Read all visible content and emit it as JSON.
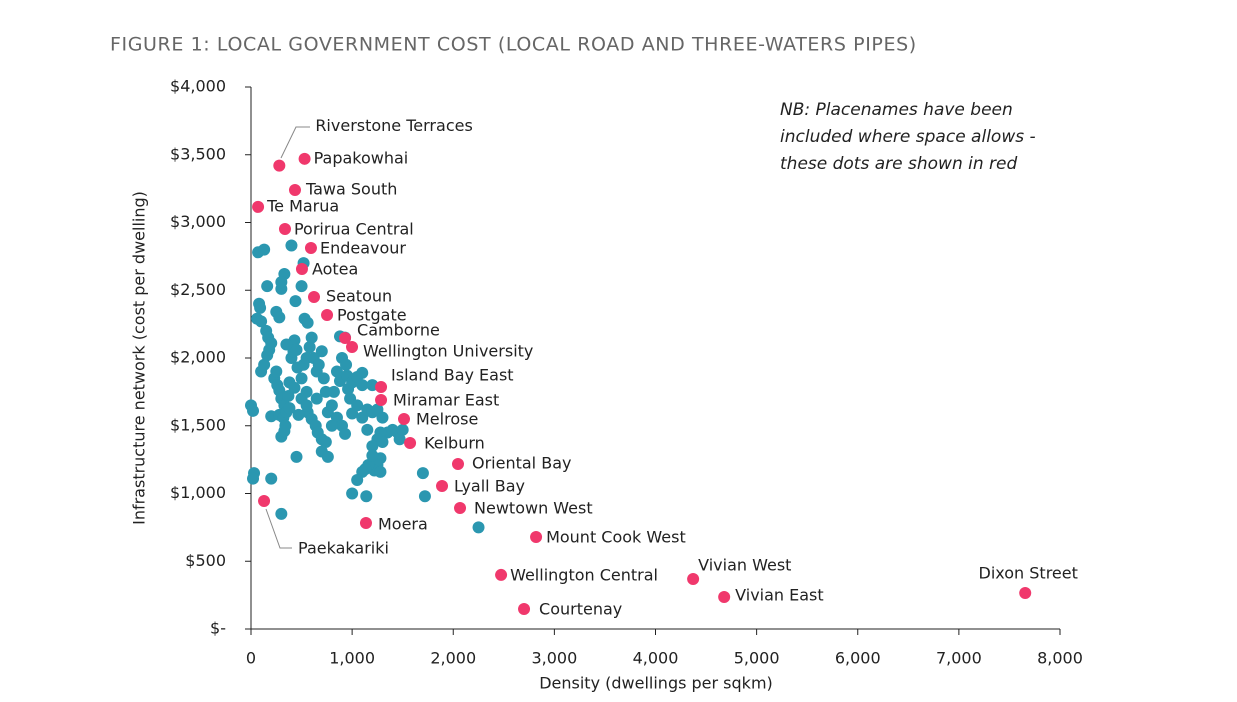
{
  "chart_data": {
    "type": "scatter",
    "title": "FIGURE 1: LOCAL GOVERNMENT COST (LOCAL ROAD AND THREE-WATERS PIPES)",
    "xlabel": "Density (dwellings per sqkm)",
    "ylabel": "Infrastructure network (cost per dwelling)",
    "annotation": [
      "NB: Placenames have been",
      "included where space allows -",
      "these dots are shown in red"
    ],
    "xlim": [
      0,
      8000
    ],
    "ylim": [
      0,
      4000
    ],
    "xticks": [
      0,
      {
        "value": 1000,
        "label": "1,000"
      },
      {
        "value": 2000,
        "label": "2,000"
      },
      {
        "value": 3000,
        "label": "3,000"
      },
      {
        "value": 4000,
        "label": "4,000"
      },
      {
        "value": 5000,
        "label": "5,000"
      },
      {
        "value": 6000,
        "label": "6,000"
      },
      {
        "value": 7000,
        "label": "7,000"
      },
      {
        "value": 8000,
        "label": "8,000"
      }
    ],
    "yticks": [
      {
        "value": 0,
        "label": "$-"
      },
      {
        "value": 500,
        "label": "$500"
      },
      {
        "value": 1000,
        "label": "$1,000"
      },
      {
        "value": 1500,
        "label": "$1,500"
      },
      {
        "value": 2000,
        "label": "$2,000"
      },
      {
        "value": 2500,
        "label": "$2,500"
      },
      {
        "value": 3000,
        "label": "$3,000"
      },
      {
        "value": 3500,
        "label": "$3,500"
      },
      {
        "value": 4000,
        "label": "$4,000"
      }
    ],
    "series": [
      {
        "color": "#2b97b0",
        "x": [
          0,
          20,
          30,
          20,
          70,
          130,
          80,
          90,
          60,
          100,
          100,
          130,
          150,
          170,
          160,
          180,
          160,
          200,
          250,
          280,
          300,
          330,
          300,
          230,
          260,
          280,
          300,
          330,
          200,
          280,
          320,
          340,
          300,
          330,
          350,
          370,
          380,
          400,
          420,
          430,
          450,
          440,
          400,
          520,
          500,
          530,
          560,
          460,
          500,
          520,
          550,
          580,
          600,
          620,
          650,
          670,
          700,
          720,
          500,
          550,
          560,
          600,
          640,
          660,
          700,
          740,
          470,
          450,
          300,
          200,
          700,
          760,
          760,
          800,
          820,
          850,
          880,
          900,
          940,
          950,
          960,
          980,
          1000,
          1050,
          1100,
          1100,
          880,
          930,
          1000,
          1050,
          1100,
          1150,
          850,
          900,
          930,
          1200,
          1250,
          1200,
          1300,
          1350,
          1400,
          1450,
          1470,
          1500,
          1280,
          1250,
          1200,
          1300,
          1280,
          1250,
          1220,
          1280,
          1160,
          1130,
          1100,
          1050,
          1000,
          1140,
          1700,
          1720,
          2250,
          650,
          740,
          800,
          1150,
          1200,
          430,
          380,
          250,
          350,
          550
        ],
        "y": [
          1650,
          1610,
          1150,
          1110,
          2780,
          2800,
          2400,
          2370,
          2290,
          2270,
          1900,
          1950,
          2200,
          2150,
          2020,
          2060,
          2530,
          2110,
          2340,
          2300,
          2510,
          2620,
          2560,
          1850,
          1800,
          1760,
          1700,
          1650,
          1570,
          1580,
          1560,
          1500,
          1420,
          1460,
          1600,
          1720,
          1820,
          2000,
          2050,
          2130,
          2060,
          2420,
          2830,
          2700,
          2530,
          2290,
          2260,
          1930,
          1850,
          1950,
          2000,
          2080,
          2150,
          2000,
          1900,
          1950,
          2050,
          1850,
          1700,
          1750,
          1600,
          1550,
          1500,
          1450,
          1400,
          1380,
          1580,
          1270,
          850,
          1110,
          1310,
          1270,
          1600,
          1650,
          1750,
          1900,
          1830,
          2000,
          1950,
          1870,
          1770,
          1700,
          1820,
          1860,
          1890,
          1800,
          2160,
          2150,
          1590,
          1650,
          1560,
          1620,
          1560,
          1500,
          1440,
          1600,
          1620,
          1800,
          1560,
          1450,
          1470,
          1450,
          1400,
          1470,
          1450,
          1400,
          1350,
          1380,
          1260,
          1210,
          1170,
          1160,
          1210,
          1180,
          1160,
          1100,
          1000,
          980,
          1150,
          980,
          750,
          1700,
          1750,
          1500,
          1470,
          1280,
          1780,
          1630,
          1900,
          2100,
          1650
        ]
      },
      {
        "color": "#f0386c",
        "labels": [
          "Riverstone Terraces",
          "Papakowhai",
          "Tawa South",
          "Te Marua",
          "Porirua Central",
          "Endeavour",
          "Aotea",
          "Seatoun",
          "Postgate",
          "Camborne",
          "Wellington University",
          "Island Bay East",
          "Miramar East",
          "Melrose",
          "Kelburn",
          "Oriental Bay",
          "Lyall Bay",
          "Newtown West",
          "Moera",
          "Mount Cook West",
          "Wellington Central",
          "Courtenay",
          "Vivian West",
          "Vivian East",
          "Dixon Street",
          "Paekakariki"
        ],
        "x": [
          280,
          530,
          435,
          70,
          336,
          593,
          504,
          623,
          752,
          930,
          999,
          1286,
          1286,
          1513,
          1573,
          2047,
          1889,
          2067,
          1137,
          2819,
          2473,
          2700,
          4372,
          4679,
          7656,
          129
        ],
        "y": [
          3420,
          3470,
          3240,
          3115,
          2952,
          2812,
          2657,
          2450,
          2317,
          2148,
          2081,
          1786,
          1690,
          1550,
          1373,
          1218,
          1055,
          893,
          782,
          679,
          399,
          148,
          369,
          236,
          266,
          945
        ]
      }
    ]
  }
}
